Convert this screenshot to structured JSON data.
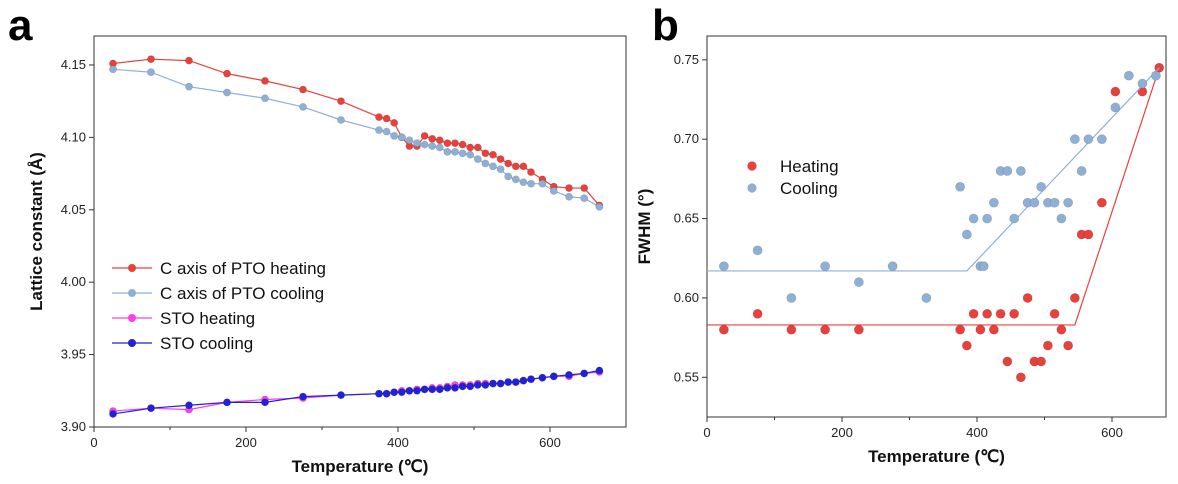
{
  "chart_data": [
    {
      "panel": "a",
      "type": "line",
      "title": "",
      "xlabel": "Temperature (℃)",
      "ylabel": "Lattice constant (Å)",
      "xlim": [
        0,
        700
      ],
      "ylim": [
        3.9,
        4.17
      ],
      "xticks": [
        0,
        200,
        400,
        600
      ],
      "yticks": [
        3.9,
        3.95,
        4.0,
        4.05,
        4.1,
        4.15
      ],
      "ytick_labels": [
        "3.90",
        "3.95",
        "4.00",
        "4.05",
        "4.10",
        "4.15"
      ],
      "legend_position": "center-left",
      "series": [
        {
          "name": "C axis of PTO heating",
          "color": "#e8413c",
          "x": [
            25,
            75,
            125,
            175,
            225,
            275,
            325,
            375,
            385,
            395,
            405,
            415,
            425,
            435,
            445,
            455,
            465,
            475,
            485,
            495,
            505,
            515,
            525,
            535,
            545,
            555,
            565,
            575,
            590,
            605,
            625,
            645,
            665
          ],
          "y": [
            4.151,
            4.154,
            4.153,
            4.144,
            4.139,
            4.133,
            4.125,
            4.114,
            4.113,
            4.11,
            4.1,
            4.094,
            4.094,
            4.101,
            4.099,
            4.098,
            4.096,
            4.096,
            4.095,
            4.093,
            4.093,
            4.089,
            4.088,
            4.085,
            4.082,
            4.08,
            4.08,
            4.076,
            4.071,
            4.066,
            4.065,
            4.065,
            4.053
          ]
        },
        {
          "name": "C axis of PTO cooling",
          "color": "#8fb0d6",
          "x": [
            25,
            75,
            125,
            175,
            225,
            275,
            325,
            375,
            385,
            395,
            405,
            415,
            425,
            435,
            445,
            455,
            465,
            475,
            485,
            495,
            505,
            515,
            525,
            535,
            545,
            555,
            565,
            575,
            590,
            605,
            625,
            645,
            665
          ],
          "y": [
            4.147,
            4.145,
            4.135,
            4.131,
            4.127,
            4.121,
            4.112,
            4.105,
            4.104,
            4.101,
            4.1,
            4.098,
            4.096,
            4.095,
            4.094,
            4.093,
            4.09,
            4.09,
            4.089,
            4.088,
            4.085,
            4.082,
            4.08,
            4.078,
            4.073,
            4.071,
            4.069,
            4.068,
            4.068,
            4.063,
            4.059,
            4.058,
            4.052
          ]
        },
        {
          "name": "STO heating",
          "color": "#ff3ee6",
          "x": [
            25,
            75,
            125,
            175,
            225,
            275,
            325,
            375,
            385,
            395,
            405,
            415,
            425,
            435,
            445,
            455,
            465,
            475,
            485,
            495,
            505,
            515,
            525,
            535,
            545,
            555,
            565,
            575,
            590,
            605,
            625,
            645,
            665
          ],
          "y": [
            3.911,
            3.913,
            3.912,
            3.917,
            3.919,
            3.92,
            3.922,
            3.923,
            3.923,
            3.924,
            3.925,
            3.925,
            3.926,
            3.926,
            3.927,
            3.927,
            3.928,
            3.929,
            3.929,
            3.929,
            3.93,
            3.93,
            3.93,
            3.93,
            3.931,
            3.931,
            3.932,
            3.933,
            3.934,
            3.935,
            3.935,
            3.937,
            3.938
          ]
        },
        {
          "name": "STO cooling",
          "color": "#1f22d8",
          "x": [
            25,
            75,
            125,
            175,
            225,
            275,
            325,
            375,
            385,
            395,
            405,
            415,
            425,
            435,
            445,
            455,
            465,
            475,
            485,
            495,
            505,
            515,
            525,
            535,
            545,
            555,
            565,
            575,
            590,
            605,
            625,
            645,
            665
          ],
          "y": [
            3.909,
            3.913,
            3.915,
            3.917,
            3.917,
            3.921,
            3.922,
            3.923,
            3.923,
            3.924,
            3.924,
            3.925,
            3.925,
            3.926,
            3.926,
            3.926,
            3.927,
            3.927,
            3.928,
            3.928,
            3.929,
            3.929,
            3.93,
            3.93,
            3.931,
            3.931,
            3.932,
            3.933,
            3.934,
            3.935,
            3.936,
            3.937,
            3.939
          ]
        }
      ]
    },
    {
      "panel": "b",
      "type": "scatter",
      "title": "",
      "xlabel": "Temperature (℃)",
      "ylabel": "FWHM (°)",
      "xlim": [
        0,
        680
      ],
      "ylim": [
        0.525,
        0.765
      ],
      "xticks": [
        0,
        200,
        400,
        600
      ],
      "yticks": [
        0.55,
        0.6,
        0.65,
        0.7,
        0.75
      ],
      "ytick_labels": [
        "0.55",
        "0.60",
        "0.65",
        "0.70",
        "0.75"
      ],
      "legend_position": "center-left",
      "series": [
        {
          "name": "Heating",
          "color": "#e8413c",
          "x": [
            25,
            75,
            125,
            175,
            225,
            375,
            385,
            395,
            405,
            415,
            425,
            435,
            445,
            455,
            465,
            475,
            485,
            495,
            505,
            515,
            525,
            535,
            545,
            555,
            565,
            585,
            605,
            645,
            670
          ],
          "y": [
            0.58,
            0.59,
            0.58,
            0.58,
            0.58,
            0.58,
            0.57,
            0.59,
            0.58,
            0.59,
            0.58,
            0.59,
            0.56,
            0.59,
            0.55,
            0.6,
            0.56,
            0.56,
            0.57,
            0.59,
            0.58,
            0.57,
            0.6,
            0.64,
            0.64,
            0.66,
            0.73,
            0.73,
            0.745
          ],
          "fit_x": [
            0,
            545,
            670
          ],
          "fit_y": [
            0.583,
            0.583,
            0.745
          ]
        },
        {
          "name": "Cooling",
          "color": "#8fb0d6",
          "x": [
            25,
            75,
            125,
            175,
            225,
            275,
            325,
            375,
            385,
            395,
            405,
            410,
            415,
            425,
            435,
            445,
            455,
            465,
            475,
            485,
            495,
            505,
            515,
            525,
            535,
            545,
            555,
            565,
            585,
            605,
            625,
            645,
            665
          ],
          "y": [
            0.62,
            0.63,
            0.6,
            0.62,
            0.61,
            0.62,
            0.6,
            0.67,
            0.64,
            0.65,
            0.62,
            0.62,
            0.65,
            0.66,
            0.68,
            0.68,
            0.65,
            0.68,
            0.66,
            0.66,
            0.67,
            0.66,
            0.66,
            0.65,
            0.66,
            0.7,
            0.68,
            0.7,
            0.7,
            0.72,
            0.74,
            0.735,
            0.74
          ],
          "fit_x": [
            0,
            385,
            670
          ],
          "fit_y": [
            0.617,
            0.617,
            0.745
          ]
        }
      ]
    }
  ],
  "labels": {
    "panel_a": "a",
    "panel_b": "b"
  }
}
